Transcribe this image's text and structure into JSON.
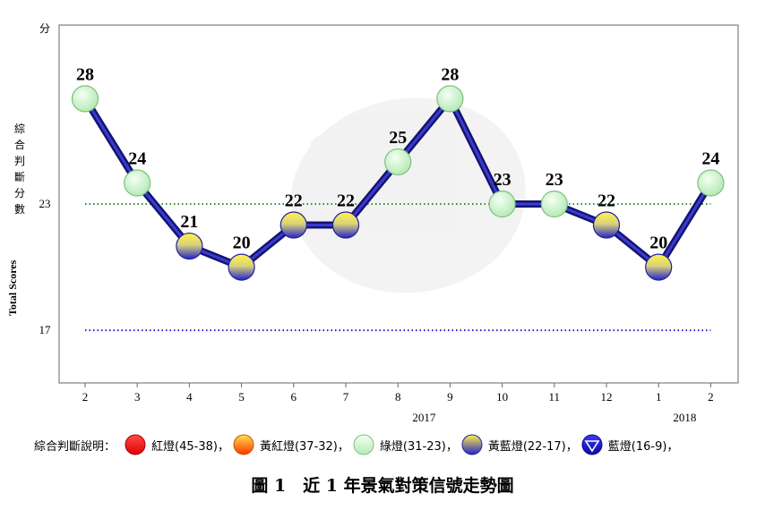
{
  "chart_data": {
    "type": "line",
    "title": "",
    "y_unit": "分",
    "ylabel_zh": "綜合判斷分數",
    "ylabel_en": "Total Scores",
    "x": [
      "2",
      "3",
      "4",
      "5",
      "6",
      "7",
      "8",
      "9",
      "10",
      "11",
      "12",
      "1",
      "2"
    ],
    "year_labels": [
      {
        "index": 7,
        "label": "2017"
      },
      {
        "index": 12,
        "label": "2018"
      }
    ],
    "series": [
      {
        "values": [
          28,
          24,
          21,
          20,
          22,
          22,
          25,
          28,
          23,
          23,
          22,
          20,
          24
        ],
        "signals": [
          "green",
          "green",
          "yellow-blue",
          "yellow-blue",
          "yellow-blue",
          "yellow-blue",
          "green",
          "green",
          "green",
          "green",
          "yellow-blue",
          "yellow-blue",
          "green"
        ]
      }
    ],
    "y_ticks": [
      23,
      17
    ],
    "ylim": [
      14.5,
      31.5
    ],
    "reference_lines": [
      {
        "y": 23,
        "color": "#2e8b2e",
        "style": "dotted"
      },
      {
        "y": 17,
        "color": "#2222cc",
        "style": "dotted"
      }
    ],
    "grid": false,
    "line_color": "#1a1a8c"
  },
  "legend": {
    "title": "綜合判斷說明：",
    "separator": "，",
    "items": [
      {
        "key": "red",
        "label": "紅燈(45-38)",
        "icon": "red-dot-icon",
        "color": "#ff0000"
      },
      {
        "key": "yellow-red",
        "label": "黃紅燈(37-32)",
        "icon": "yellow-red-dot-icon",
        "color": "#ff6600"
      },
      {
        "key": "green",
        "label": "綠燈(31-23)",
        "icon": "green-dot-icon",
        "color": "#c8f0c8"
      },
      {
        "key": "yellow-blue",
        "label": "黃藍燈(22-17)",
        "icon": "yellow-blue-dot-icon",
        "color": "#3a3ad0"
      },
      {
        "key": "blue",
        "label": "藍燈(16-9)",
        "icon": "blue-triangle-dot-icon",
        "color": "#1515d0"
      }
    ]
  },
  "caption": "圖 1　近 1 年景氣對策信號走勢圖"
}
